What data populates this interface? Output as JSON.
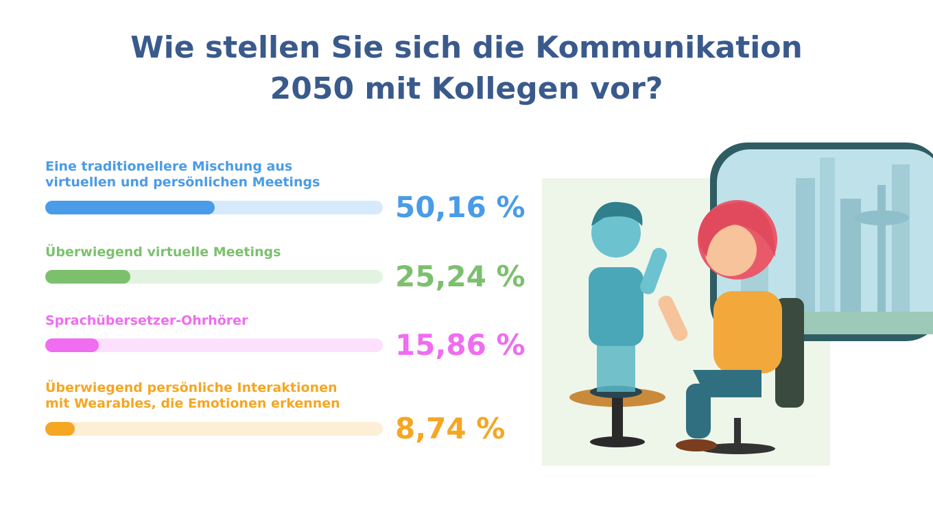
{
  "title_lines": [
    "Wie stellen Sie sich die Kommunikation",
    "2050 mit Kollegen vor?"
  ],
  "colors": {
    "title": "#3a5a8c",
    "series": [
      "#4a9be8",
      "#7cc06e",
      "#f06cf0",
      "#f5a623"
    ],
    "tracks": [
      "#d6eafc",
      "#e2f4df",
      "#fde0fd",
      "#fdefd6"
    ]
  },
  "chart_data": {
    "type": "bar",
    "orientation": "horizontal",
    "title": "Wie stellen Sie sich die Kommunikation 2050 mit Kollegen vor?",
    "categories": [
      "Eine traditionellere Mischung aus virtuellen und persönlichen Meetings",
      "Überwiegend virtuelle Meetings",
      "Sprachübersetzer-Ohrhörer",
      "Überwiegend persönliche Interaktionen mit Wearables, die Emotionen erkennen"
    ],
    "values": [
      50.16,
      25.24,
      15.86,
      8.74
    ],
    "value_labels": [
      "50,16 %",
      "25,24 %",
      "15,86 %",
      "8,74 %"
    ],
    "xlim": [
      0,
      100
    ]
  },
  "rows": [
    {
      "label_lines": [
        "Eine traditionellere Mischung aus",
        "virtuellen und persönlichen Meetings"
      ]
    },
    {
      "label_lines": [
        "Überwiegend virtuelle Meetings"
      ]
    },
    {
      "label_lines": [
        "Sprachübersetzer-Ohrhörer"
      ]
    },
    {
      "label_lines": [
        "Überwiegend persönliche Interaktionen",
        "mit Wearables, die Emotionen erkennen"
      ]
    }
  ]
}
